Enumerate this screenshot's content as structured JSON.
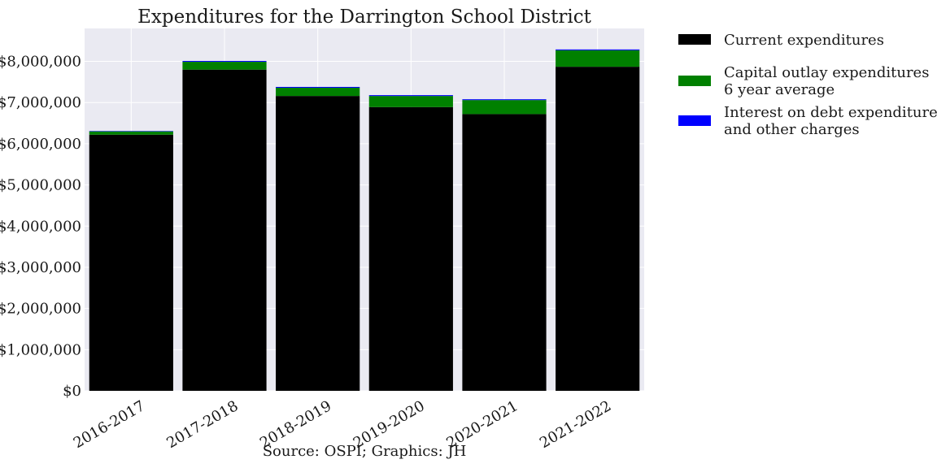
{
  "chart_data": {
    "type": "bar",
    "stacked": true,
    "title": "Expenditures for the Darrington School District",
    "categories": [
      "2016-2017",
      "2017-2018",
      "2018-2019",
      "2019-2020",
      "2020-2021",
      "2021-2022"
    ],
    "series": [
      {
        "name": "Current expenditures",
        "color": "#000000",
        "values": [
          6220000,
          7800000,
          7160000,
          6890000,
          6720000,
          7870000
        ]
      },
      {
        "name": "Capital outlay expenditures\n6 year average",
        "color": "#008000",
        "values": [
          80000,
          190000,
          200000,
          270000,
          340000,
          400000
        ]
      },
      {
        "name": "Interest on debt expenditures\nand other charges",
        "color": "#0000ff",
        "values": [
          10000,
          20000,
          20000,
          20000,
          20000,
          20000
        ]
      }
    ],
    "ylim": [
      0,
      8800000
    ],
    "yticks": [
      0,
      1000000,
      2000000,
      3000000,
      4000000,
      5000000,
      6000000,
      7000000,
      8000000
    ],
    "ytick_labels": [
      "$0",
      "$1,000,000",
      "$2,000,000",
      "$3,000,000",
      "$4,000,000",
      "$5,000,000",
      "$6,000,000",
      "$7,000,000",
      "$8,000,000"
    ],
    "xlabel": "Source: OSPI; Graphics: JH",
    "ylabel": "",
    "grid": true,
    "legend_position": "outside-right",
    "background_color": "#eaeaf2"
  }
}
